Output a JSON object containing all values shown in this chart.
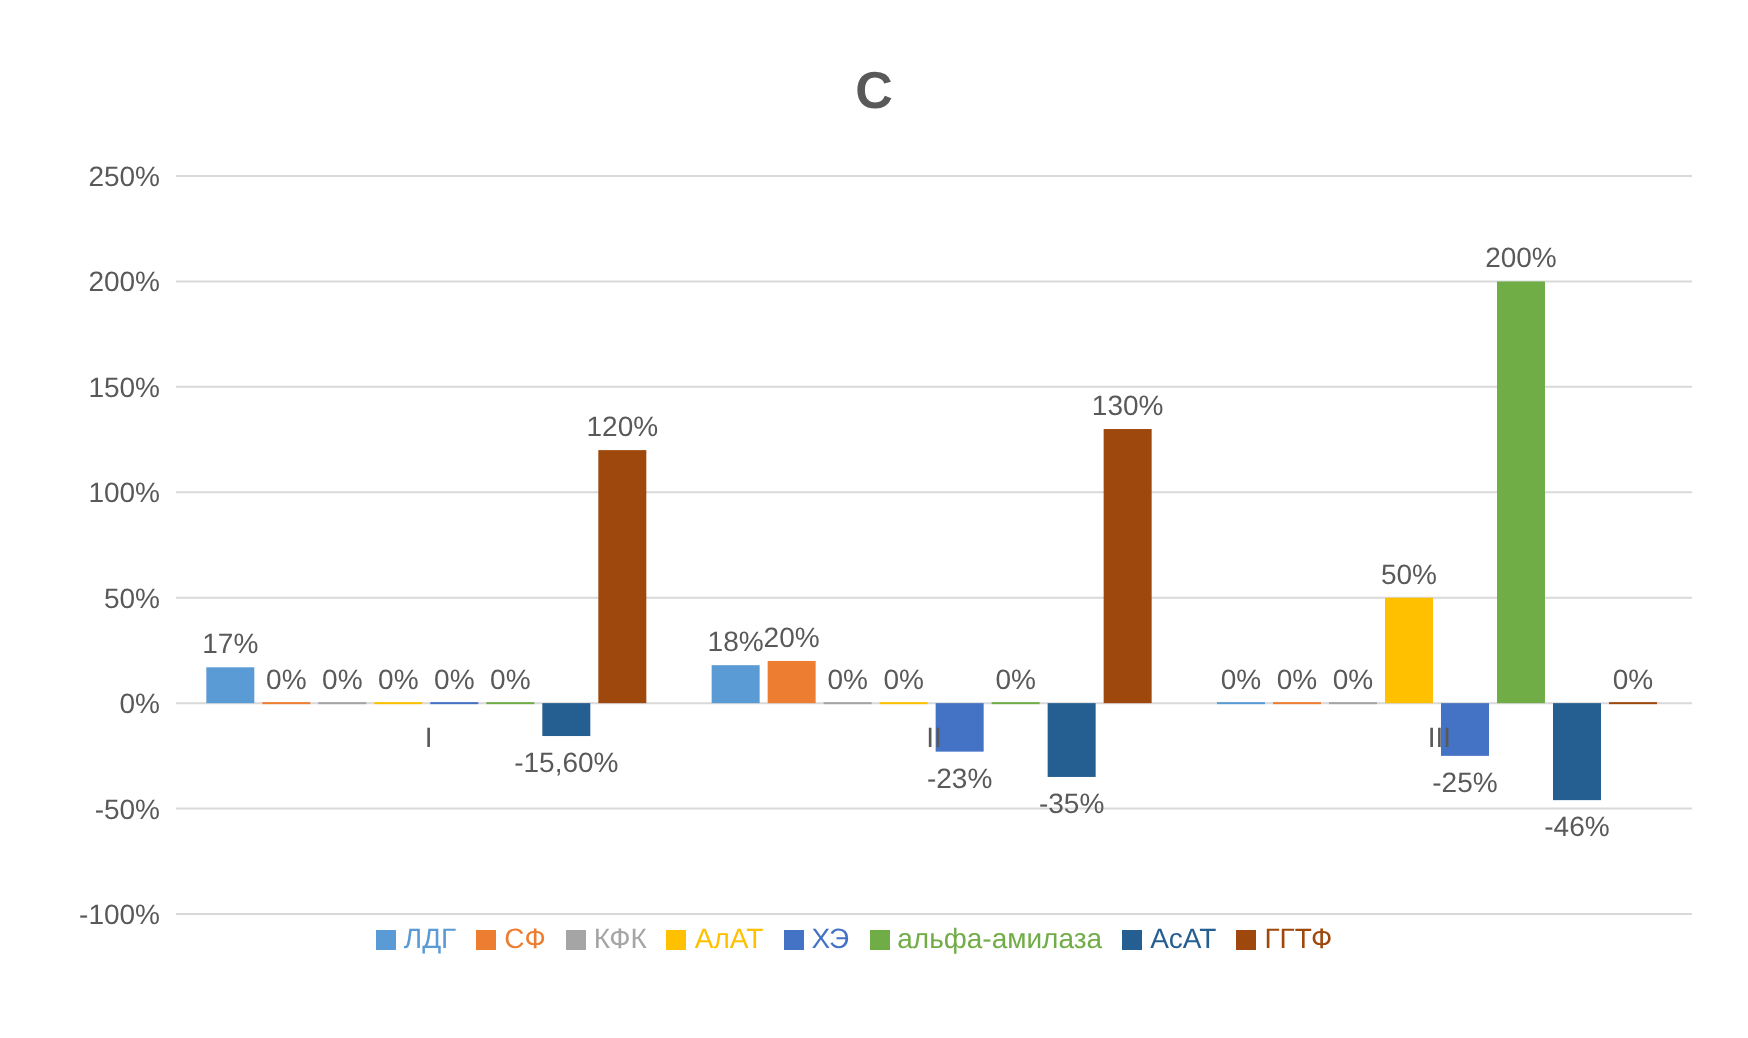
{
  "chart_data": {
    "type": "bar",
    "title": "С",
    "categories": [
      "I",
      "II",
      "III"
    ],
    "series": [
      {
        "name": "ЛДГ",
        "color": "#5b9bd5",
        "values": [
          17,
          18,
          0
        ],
        "value_labels": [
          "17%",
          "18%",
          "0%"
        ]
      },
      {
        "name": "СФ",
        "color": "#ed7d31",
        "values": [
          0,
          20,
          0
        ],
        "value_labels": [
          "0%",
          "20%",
          "0%"
        ]
      },
      {
        "name": "КФК",
        "color": "#a5a5a5",
        "values": [
          0,
          0,
          0
        ],
        "value_labels": [
          "0%",
          "0%",
          "0%"
        ]
      },
      {
        "name": "АлАТ",
        "color": "#ffc000",
        "values": [
          0,
          0,
          50
        ],
        "value_labels": [
          "0%",
          "0%",
          "50%"
        ]
      },
      {
        "name": "ХЭ",
        "color": "#4472c4",
        "values": [
          0,
          -23,
          -25
        ],
        "value_labels": [
          "0%",
          "-23%",
          "-25%"
        ]
      },
      {
        "name": "альфа-амилаза",
        "color": "#70ad47",
        "values": [
          0,
          0,
          200
        ],
        "value_labels": [
          "0%",
          "0%",
          "200%"
        ]
      },
      {
        "name": "АсАТ",
        "color": "#255e91",
        "values": [
          -15.6,
          -35,
          -46
        ],
        "value_labels": [
          "-15,60%",
          "-35%",
          "-46%"
        ]
      },
      {
        "name": "ГГТФ",
        "color": "#9e480e",
        "values": [
          120,
          130,
          0
        ],
        "value_labels": [
          "120%",
          "130%",
          "0%"
        ]
      }
    ],
    "ylim": [
      -100,
      250
    ],
    "yticks": [
      {
        "value": -100,
        "label": "-100%"
      },
      {
        "value": -50,
        "label": "-50%"
      },
      {
        "value": 0,
        "label": "0%"
      },
      {
        "value": 50,
        "label": "50%"
      },
      {
        "value": 100,
        "label": "100%"
      },
      {
        "value": 150,
        "label": "150%"
      },
      {
        "value": 200,
        "label": "200%"
      },
      {
        "value": 250,
        "label": "250%"
      }
    ],
    "grid": "y",
    "legend": "bottom"
  }
}
